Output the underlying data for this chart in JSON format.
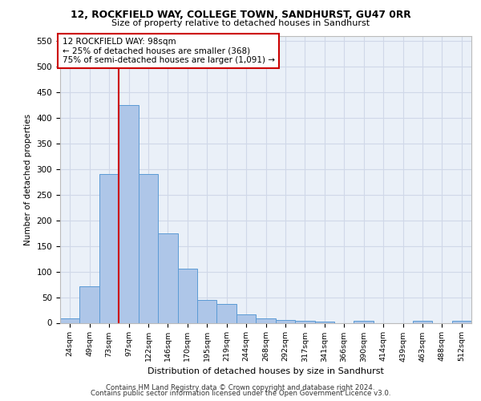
{
  "title_line1": "12, ROCKFIELD WAY, COLLEGE TOWN, SANDHURST, GU47 0RR",
  "title_line2": "Size of property relative to detached houses in Sandhurst",
  "xlabel": "Distribution of detached houses by size in Sandhurst",
  "ylabel": "Number of detached properties",
  "bin_labels": [
    "24sqm",
    "49sqm",
    "73sqm",
    "97sqm",
    "122sqm",
    "146sqm",
    "170sqm",
    "195sqm",
    "219sqm",
    "244sqm",
    "268sqm",
    "292sqm",
    "317sqm",
    "341sqm",
    "366sqm",
    "390sqm",
    "414sqm",
    "439sqm",
    "463sqm",
    "488sqm",
    "512sqm"
  ],
  "bar_values": [
    8,
    71,
    291,
    425,
    291,
    175,
    105,
    44,
    37,
    16,
    8,
    5,
    4,
    3,
    0,
    4,
    0,
    0,
    4,
    0,
    4
  ],
  "bar_color": "#aec6e8",
  "bar_edge_color": "#5b9bd5",
  "grid_color": "#d0d8e8",
  "background_color": "#eaf0f8",
  "vline_x_index": 3,
  "vline_color": "#cc0000",
  "annotation_text": "12 ROCKFIELD WAY: 98sqm\n← 25% of detached houses are smaller (368)\n75% of semi-detached houses are larger (1,091) →",
  "annotation_box_color": "#ffffff",
  "annotation_box_edge": "#cc0000",
  "ylim": [
    0,
    560
  ],
  "yticks": [
    0,
    50,
    100,
    150,
    200,
    250,
    300,
    350,
    400,
    450,
    500,
    550
  ],
  "footer_line1": "Contains HM Land Registry data © Crown copyright and database right 2024.",
  "footer_line2": "Contains public sector information licensed under the Open Government Licence v3.0."
}
